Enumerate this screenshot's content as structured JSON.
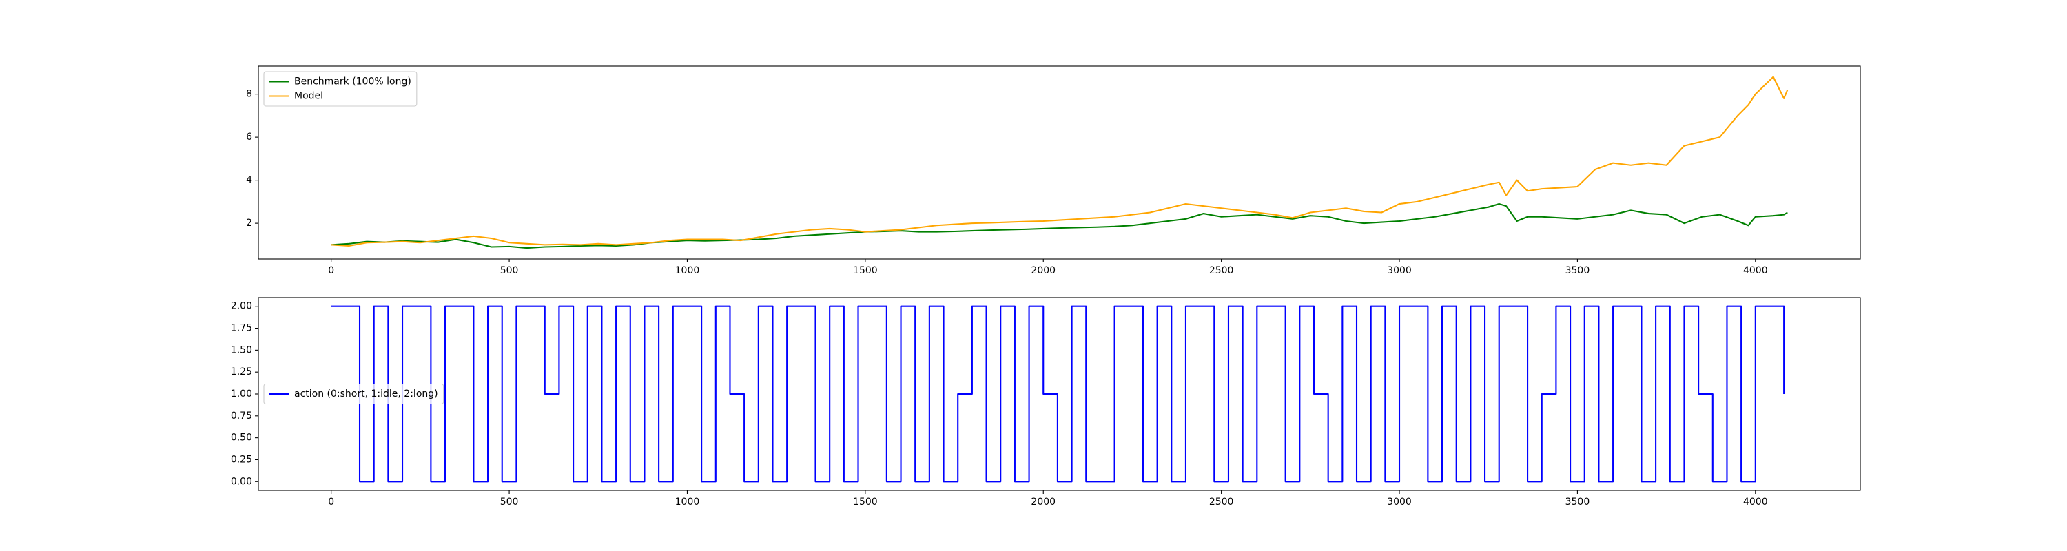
{
  "chart_data": [
    {
      "type": "line",
      "x": [
        0,
        50,
        100,
        150,
        200,
        250,
        300,
        350,
        400,
        450,
        500,
        550,
        600,
        650,
        700,
        750,
        800,
        850,
        900,
        950,
        1000,
        1050,
        1100,
        1150,
        1200,
        1250,
        1300,
        1350,
        1400,
        1450,
        1500,
        1550,
        1600,
        1650,
        1700,
        1750,
        1800,
        1850,
        1900,
        1950,
        2000,
        2050,
        2100,
        2150,
        2200,
        2250,
        2300,
        2350,
        2400,
        2450,
        2500,
        2550,
        2600,
        2650,
        2700,
        2750,
        2800,
        2850,
        2900,
        2950,
        3000,
        3050,
        3100,
        3150,
        3200,
        3250,
        3280,
        3300,
        3330,
        3360,
        3400,
        3450,
        3500,
        3550,
        3600,
        3650,
        3700,
        3750,
        3800,
        3850,
        3900,
        3950,
        3980,
        4000,
        4050,
        4080,
        4090
      ],
      "series": [
        {
          "name": "Benchmark (100% long)",
          "color": "#008000",
          "values": [
            1.0,
            1.05,
            1.15,
            1.12,
            1.18,
            1.15,
            1.12,
            1.25,
            1.1,
            0.9,
            0.92,
            0.85,
            0.9,
            0.92,
            0.95,
            0.97,
            0.95,
            1.0,
            1.1,
            1.15,
            1.2,
            1.18,
            1.2,
            1.22,
            1.25,
            1.3,
            1.4,
            1.45,
            1.5,
            1.55,
            1.6,
            1.62,
            1.65,
            1.6,
            1.6,
            1.62,
            1.65,
            1.68,
            1.7,
            1.72,
            1.75,
            1.78,
            1.8,
            1.82,
            1.85,
            1.9,
            2.0,
            2.1,
            2.2,
            2.45,
            2.3,
            2.35,
            2.4,
            2.3,
            2.2,
            2.35,
            2.3,
            2.1,
            2.0,
            2.05,
            2.1,
            2.2,
            2.3,
            2.45,
            2.6,
            2.75,
            2.9,
            2.8,
            2.1,
            2.3,
            2.3,
            2.25,
            2.2,
            2.3,
            2.4,
            2.6,
            2.45,
            2.4,
            2.0,
            2.3,
            2.4,
            2.1,
            1.9,
            2.3,
            2.35,
            2.4,
            2.5
          ]
        },
        {
          "name": "Model",
          "color": "#ffa500",
          "values": [
            1.0,
            0.95,
            1.1,
            1.12,
            1.15,
            1.1,
            1.2,
            1.3,
            1.4,
            1.3,
            1.1,
            1.05,
            1.0,
            1.02,
            1.0,
            1.05,
            1.0,
            1.05,
            1.1,
            1.2,
            1.25,
            1.25,
            1.25,
            1.2,
            1.35,
            1.5,
            1.6,
            1.7,
            1.75,
            1.7,
            1.6,
            1.65,
            1.7,
            1.8,
            1.9,
            1.95,
            2.0,
            2.02,
            2.05,
            2.08,
            2.1,
            2.15,
            2.2,
            2.25,
            2.3,
            2.4,
            2.5,
            2.7,
            2.9,
            2.8,
            2.7,
            2.6,
            2.5,
            2.4,
            2.25,
            2.5,
            2.6,
            2.7,
            2.55,
            2.5,
            2.9,
            3.0,
            3.2,
            3.4,
            3.6,
            3.8,
            3.9,
            3.3,
            4.0,
            3.5,
            3.6,
            3.65,
            3.7,
            4.5,
            4.8,
            4.7,
            4.8,
            4.7,
            5.6,
            5.8,
            6.0,
            7.0,
            7.5,
            8.0,
            8.8,
            7.8,
            8.2
          ]
        }
      ],
      "xlim": [
        -204.5,
        4294.5
      ],
      "ylim": [
        0.34,
        9.3
      ],
      "xticks": [
        0,
        500,
        1000,
        1500,
        2000,
        2500,
        3000,
        3500,
        4000
      ],
      "yticks": [
        2,
        4,
        6,
        8
      ],
      "legend": "upper left"
    },
    {
      "type": "line",
      "drawstyle": "steps-post",
      "x": [
        0,
        40,
        80,
        120,
        160,
        200,
        240,
        280,
        320,
        360,
        400,
        440,
        480,
        520,
        560,
        600,
        640,
        680,
        720,
        760,
        800,
        840,
        880,
        920,
        960,
        1000,
        1040,
        1080,
        1120,
        1160,
        1200,
        1240,
        1280,
        1320,
        1360,
        1400,
        1440,
        1480,
        1520,
        1560,
        1600,
        1640,
        1680,
        1720,
        1760,
        1800,
        1840,
        1880,
        1920,
        1960,
        2000,
        2040,
        2080,
        2120,
        2160,
        2200,
        2240,
        2280,
        2320,
        2360,
        2400,
        2440,
        2480,
        2520,
        2560,
        2600,
        2640,
        2680,
        2720,
        2760,
        2800,
        2840,
        2880,
        2920,
        2960,
        3000,
        3040,
        3080,
        3120,
        3160,
        3200,
        3240,
        3280,
        3320,
        3360,
        3400,
        3440,
        3480,
        3520,
        3560,
        3600,
        3640,
        3680,
        3720,
        3760,
        3800,
        3840,
        3880,
        3920,
        3960,
        4000,
        4040,
        4080
      ],
      "series": [
        {
          "name": "action (0:short, 1:idle, 2:long)",
          "color": "#0000ff",
          "values": [
            2,
            2,
            0,
            2,
            0,
            2,
            2,
            0,
            2,
            2,
            0,
            2,
            0,
            2,
            2,
            1,
            2,
            0,
            2,
            0,
            2,
            0,
            2,
            0,
            2,
            2,
            0,
            2,
            1,
            0,
            2,
            0,
            2,
            2,
            0,
            2,
            0,
            2,
            2,
            0,
            2,
            0,
            2,
            0,
            1,
            2,
            0,
            2,
            0,
            2,
            1,
            0,
            2,
            0,
            0,
            2,
            2,
            0,
            2,
            0,
            2,
            2,
            0,
            2,
            0,
            2,
            2,
            0,
            2,
            1,
            0,
            2,
            0,
            2,
            0,
            2,
            2,
            0,
            2,
            0,
            2,
            0,
            2,
            2,
            0,
            1,
            2,
            0,
            2,
            0,
            2,
            2,
            0,
            2,
            0,
            2,
            1,
            0,
            2,
            0,
            2,
            2,
            1
          ]
        }
      ],
      "xlim": [
        -204.5,
        4294.5
      ],
      "ylim": [
        -0.1,
        2.1
      ],
      "xticks": [
        0,
        500,
        1000,
        1500,
        2000,
        2500,
        3000,
        3500,
        4000
      ],
      "yticks": [
        {
          "value": 0,
          "label": "0.00"
        },
        {
          "value": 0.25,
          "label": "0.25"
        },
        {
          "value": 0.5,
          "label": "0.50"
        },
        {
          "value": 0.75,
          "label": "0.75"
        },
        {
          "value": 1,
          "label": "1.00"
        },
        {
          "value": 1.25,
          "label": "1.25"
        },
        {
          "value": 1.5,
          "label": "1.50"
        },
        {
          "value": 1.75,
          "label": "1.75"
        },
        {
          "value": 2,
          "label": "2.00"
        }
      ],
      "legend": "center left"
    }
  ]
}
